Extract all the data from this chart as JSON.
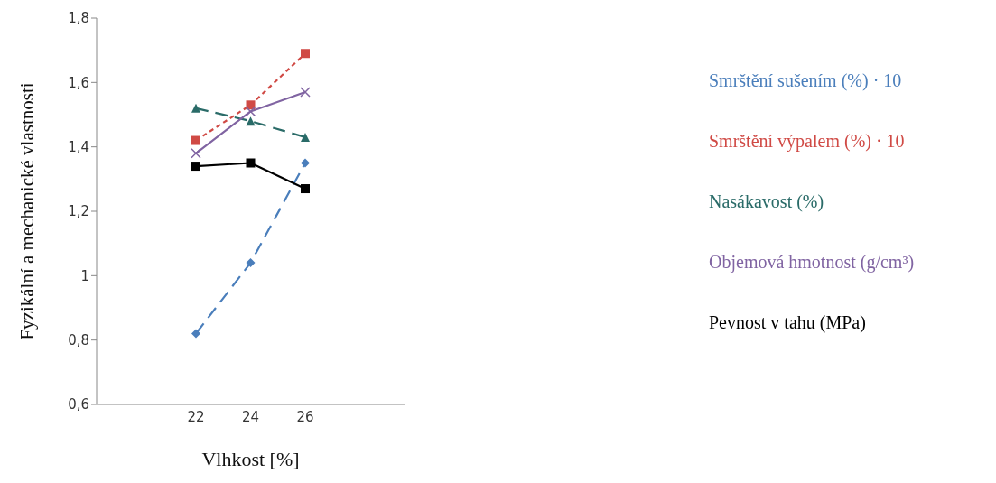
{
  "chart_data": {
    "type": "line",
    "xlabel": "Vlhkost [%]",
    "ylabel": "Fyzikální a mechanické vlastnosti",
    "categories": [
      "22",
      "24",
      "26"
    ],
    "series": [
      {
        "name": "Smrštění sušením (%) · 10",
        "color": "#4a7ebb",
        "values": [
          0.82,
          1.04,
          1.35
        ],
        "marker": "diamond",
        "line_style": "dashed"
      },
      {
        "name": "Smrštění výpalem (%) · 10",
        "color": "#d04a45",
        "values": [
          1.42,
          1.53,
          1.69
        ],
        "marker": "square",
        "line_style": "dotted"
      },
      {
        "name": "Nasákavost (%)",
        "color": "#2a6b68",
        "values": [
          1.52,
          1.48,
          1.43
        ],
        "marker": "triangle",
        "line_style": "dashed"
      },
      {
        "name": "Objemová hmotnost (g/cm³)",
        "color": "#8064a2",
        "values": [
          1.38,
          1.51,
          1.57
        ],
        "marker": "cross",
        "line_style": "solid"
      },
      {
        "name": "Pevnost v tahu (MPa)",
        "color": "#000000",
        "values": [
          1.34,
          1.35,
          1.27
        ],
        "marker": "square",
        "line_style": "solid"
      }
    ],
    "ylim": [
      0.6,
      1.8
    ],
    "yticks": [
      {
        "value": 0.6,
        "label": "0,6"
      },
      {
        "value": 0.8,
        "label": "0,8"
      },
      {
        "value": 1,
        "label": "1"
      },
      {
        "value": 1.2,
        "label": "1,2"
      },
      {
        "value": 1.4,
        "label": "1,4"
      },
      {
        "value": 1.6,
        "label": "1,6"
      },
      {
        "value": 1.8,
        "label": "1,8"
      }
    ],
    "legend": "right",
    "grid": false
  }
}
